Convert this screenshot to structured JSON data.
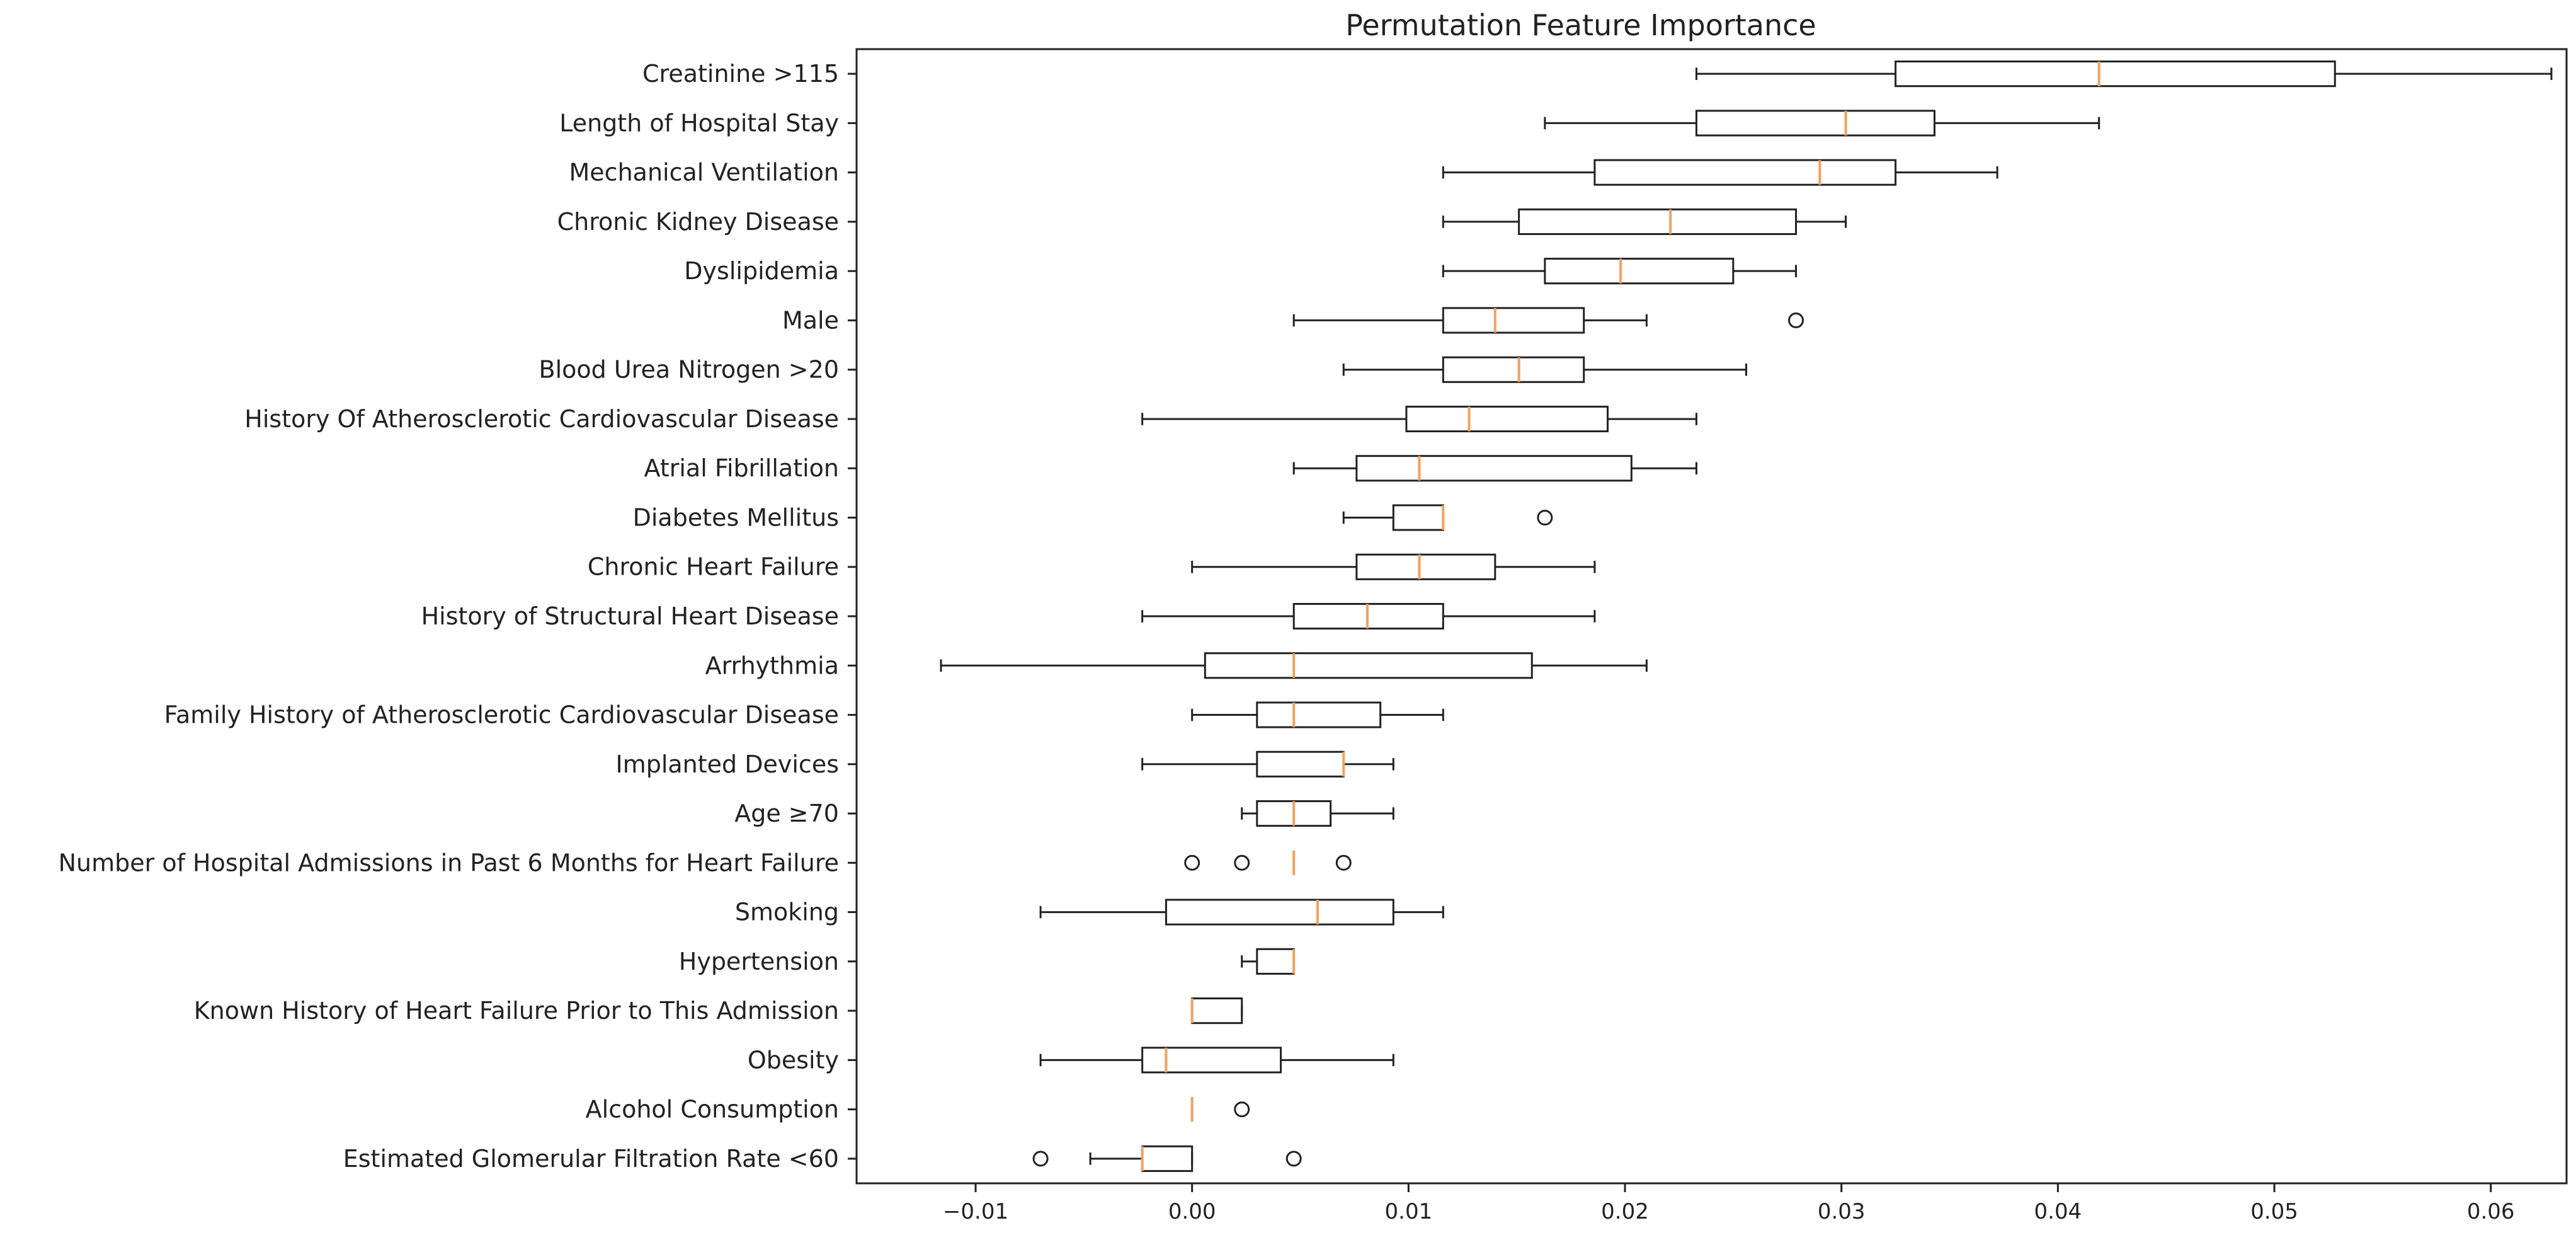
{
  "chart_data": {
    "type": "boxplot",
    "title": "Permutation Feature Importance",
    "xlabel": "",
    "ylabel": "",
    "xlim": [
      -0.0155,
      0.0635
    ],
    "xticks": [
      -0.01,
      0.0,
      0.01,
      0.02,
      0.03,
      0.04,
      0.05,
      0.06
    ],
    "xtick_labels": [
      "−0.01",
      "0.00",
      "0.01",
      "0.02",
      "0.03",
      "0.04",
      "0.05",
      "0.06"
    ],
    "box_color": "#222222",
    "median_color": "#f5a05a",
    "features": [
      {
        "label": "Creatinine >115",
        "whisker_low": 0.0233,
        "q1": 0.0325,
        "median": 0.0419,
        "q3": 0.0528,
        "whisker_high": 0.0628,
        "outliers": []
      },
      {
        "label": "Length of Hospital Stay",
        "whisker_low": 0.0163,
        "q1": 0.0233,
        "median": 0.0302,
        "q3": 0.0343,
        "whisker_high": 0.0419,
        "outliers": []
      },
      {
        "label": "Mechanical Ventilation",
        "whisker_low": 0.0116,
        "q1": 0.0186,
        "median": 0.029,
        "q3": 0.0325,
        "whisker_high": 0.0372,
        "outliers": []
      },
      {
        "label": "Chronic Kidney Disease",
        "whisker_low": 0.0116,
        "q1": 0.0151,
        "median": 0.0221,
        "q3": 0.0279,
        "whisker_high": 0.0302,
        "outliers": []
      },
      {
        "label": "Dyslipidemia",
        "whisker_low": 0.0116,
        "q1": 0.0163,
        "median": 0.0198,
        "q3": 0.025,
        "whisker_high": 0.0279,
        "outliers": []
      },
      {
        "label": "Male",
        "whisker_low": 0.0047,
        "q1": 0.0116,
        "median": 0.014,
        "q3": 0.0181,
        "whisker_high": 0.021,
        "outliers": [
          0.0279
        ]
      },
      {
        "label": "Blood Urea Nitrogen >20",
        "whisker_low": 0.007,
        "q1": 0.0116,
        "median": 0.0151,
        "q3": 0.0181,
        "whisker_high": 0.0256,
        "outliers": []
      },
      {
        "label": "History Of Atherosclerotic Cardiovascular Disease",
        "whisker_low": -0.0023,
        "q1": 0.0099,
        "median": 0.0128,
        "q3": 0.0192,
        "whisker_high": 0.0233,
        "outliers": []
      },
      {
        "label": "Atrial Fibrillation",
        "whisker_low": 0.0047,
        "q1": 0.0076,
        "median": 0.0105,
        "q3": 0.0203,
        "whisker_high": 0.0233,
        "outliers": []
      },
      {
        "label": "Diabetes Mellitus",
        "whisker_low": 0.007,
        "q1": 0.0093,
        "median": 0.0116,
        "q3": 0.0116,
        "whisker_high": 0.0116,
        "outliers": [
          0.0163
        ]
      },
      {
        "label": "Chronic Heart Failure",
        "whisker_low": 0.0,
        "q1": 0.0076,
        "median": 0.0105,
        "q3": 0.014,
        "whisker_high": 0.0186,
        "outliers": []
      },
      {
        "label": "History of Structural Heart Disease",
        "whisker_low": -0.0023,
        "q1": 0.0047,
        "median": 0.0081,
        "q3": 0.0116,
        "whisker_high": 0.0186,
        "outliers": []
      },
      {
        "label": "Arrhythmia",
        "whisker_low": -0.0116,
        "q1": 0.0006,
        "median": 0.0047,
        "q3": 0.0157,
        "whisker_high": 0.021,
        "outliers": []
      },
      {
        "label": "Family History of Atherosclerotic Cardiovascular Disease",
        "whisker_low": 0.0,
        "q1": 0.003,
        "median": 0.0047,
        "q3": 0.0087,
        "whisker_high": 0.0116,
        "outliers": []
      },
      {
        "label": "Implanted Devices",
        "whisker_low": -0.0023,
        "q1": 0.003,
        "median": 0.007,
        "q3": 0.007,
        "whisker_high": 0.0093,
        "outliers": []
      },
      {
        "label": "Age ≥70",
        "whisker_low": 0.0023,
        "q1": 0.003,
        "median": 0.0047,
        "q3": 0.0064,
        "whisker_high": 0.0093,
        "outliers": []
      },
      {
        "label": "Number of Hospital Admissions in Past 6 Months for Heart Failure",
        "whisker_low": 0.0047,
        "q1": 0.0047,
        "median": 0.0047,
        "q3": 0.0047,
        "whisker_high": 0.0047,
        "outliers": [
          0.0,
          0.0023,
          0.007
        ]
      },
      {
        "label": "Smoking",
        "whisker_low": -0.007,
        "q1": -0.0012,
        "median": 0.0058,
        "q3": 0.0093,
        "whisker_high": 0.0116,
        "outliers": []
      },
      {
        "label": "Hypertension",
        "whisker_low": 0.0023,
        "q1": 0.003,
        "median": 0.0047,
        "q3": 0.0047,
        "whisker_high": 0.0047,
        "outliers": []
      },
      {
        "label": "Known History of Heart Failure Prior to This Admission",
        "whisker_low": 0.0,
        "q1": 0.0,
        "median": 0.0,
        "q3": 0.0023,
        "whisker_high": 0.0023,
        "outliers": []
      },
      {
        "label": "Obesity",
        "whisker_low": -0.007,
        "q1": -0.0023,
        "median": -0.0012,
        "q3": 0.0041,
        "whisker_high": 0.0093,
        "outliers": []
      },
      {
        "label": "Alcohol Consumption",
        "whisker_low": 0.0,
        "q1": 0.0,
        "median": 0.0,
        "q3": 0.0,
        "whisker_high": 0.0,
        "outliers": [
          0.0023
        ]
      },
      {
        "label": "Estimated Glomerular Filtration Rate <60",
        "whisker_low": -0.0047,
        "q1": -0.0023,
        "median": -0.0023,
        "q3": 0.0,
        "whisker_high": 0.0,
        "outliers": [
          -0.007,
          0.0047
        ]
      }
    ]
  }
}
